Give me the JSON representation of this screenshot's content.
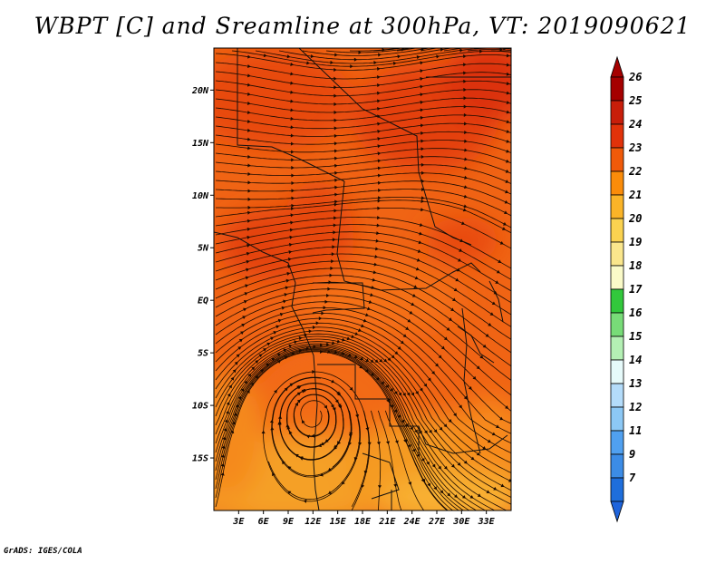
{
  "title": "WBPT [C] and Sreamline at 300hPa, VT: 2019090621",
  "footer": "GrADS: IGES/COLA",
  "map": {
    "projection": "lat-lon",
    "lon_range": [
      0,
      36
    ],
    "lat_range": [
      -20,
      24
    ],
    "field": "wet-bulb potential temperature",
    "overlay": "streamlines",
    "lat_ticks": [
      {
        "value": 20,
        "label": "20N"
      },
      {
        "value": 15,
        "label": "15N"
      },
      {
        "value": 10,
        "label": "10N"
      },
      {
        "value": 5,
        "label": "5N"
      },
      {
        "value": 0,
        "label": "EQ"
      },
      {
        "value": -5,
        "label": "5S"
      },
      {
        "value": -10,
        "label": "10S"
      },
      {
        "value": -15,
        "label": "15S"
      }
    ],
    "lon_ticks": [
      {
        "value": 3,
        "label": "3E"
      },
      {
        "value": 6,
        "label": "6E"
      },
      {
        "value": 9,
        "label": "9E"
      },
      {
        "value": 12,
        "label": "12E"
      },
      {
        "value": 15,
        "label": "15E"
      },
      {
        "value": 18,
        "label": "18E"
      },
      {
        "value": 21,
        "label": "21E"
      },
      {
        "value": 24,
        "label": "24E"
      },
      {
        "value": 27,
        "label": "27E"
      },
      {
        "value": 30,
        "label": "30E"
      },
      {
        "value": 33,
        "label": "33E"
      }
    ],
    "vortex_center": {
      "lon": 12,
      "lat": -10.5
    }
  },
  "colorbar": {
    "levels": [
      {
        "label": "26",
        "color": "#a50000"
      },
      {
        "label": "25",
        "color": "#c81e0a"
      },
      {
        "label": "24",
        "color": "#e1320a"
      },
      {
        "label": "23",
        "color": "#f05a0a"
      },
      {
        "label": "22",
        "color": "#fa8c0a"
      },
      {
        "label": "21",
        "color": "#fab428"
      },
      {
        "label": "20",
        "color": "#fad250"
      },
      {
        "label": "19",
        "color": "#fae68c"
      },
      {
        "label": "18",
        "color": "#fafac8"
      },
      {
        "label": "17",
        "color": "#32c83c"
      },
      {
        "label": "16",
        "color": "#78dc78"
      },
      {
        "label": "15",
        "color": "#b4f0b4"
      },
      {
        "label": "14",
        "color": "#e6fafa"
      },
      {
        "label": "13",
        "color": "#b4dcfa"
      },
      {
        "label": "12",
        "color": "#8cc8f5"
      },
      {
        "label": "11",
        "color": "#50a0f0"
      },
      {
        "label": "9",
        "color": "#3c8ce6"
      },
      {
        "label": "7",
        "color": "#1e6edc"
      }
    ],
    "below_color": "#1e64dc"
  }
}
